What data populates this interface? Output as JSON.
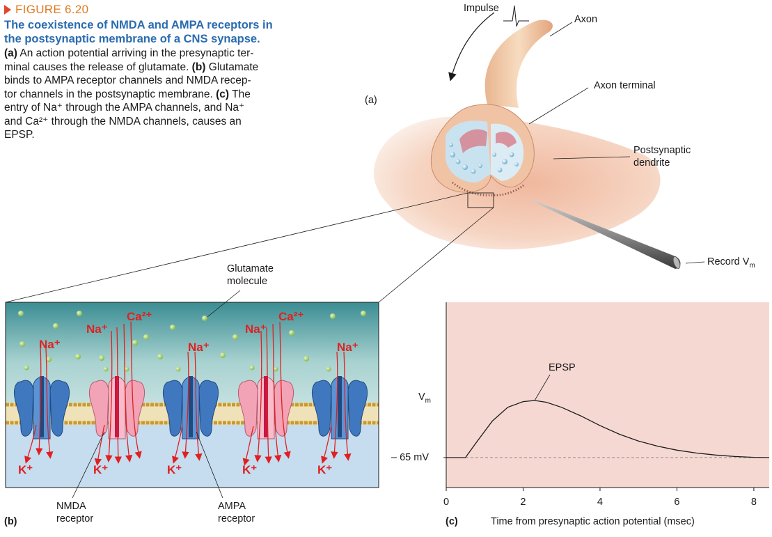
{
  "caption": {
    "figure_number": "FIGURE 6.20",
    "title_line1": "The coexistence of NMDA and AMPA receptors in",
    "title_line2": "the postsynaptic membrane of a CNS synapse.",
    "body_line1_a": "(a)",
    "body_line1_b": " An action potential arriving in the presynaptic ter-",
    "body_line2": "minal causes the release of glutamate.",
    "body_line2_b": " (b)",
    "body_line2_c": " Glutamate",
    "body_line3": "binds to AMPA receptor channels and NMDA recep-",
    "body_line4_a": "tor channels in the postsynaptic membrane.",
    "body_line4_b": " (c)",
    "body_line4_c": " The",
    "body_line5": "entry of Na⁺ through the AMPA channels, and Na⁺",
    "body_line6": "and Ca²⁺ through the NMDA channels, causes an",
    "body_line7": "EPSP."
  },
  "panel_a": {
    "panel_label": "(a)",
    "impulse": "Impulse",
    "axon": "Axon",
    "axon_terminal": "Axon terminal",
    "postsynaptic_line1": "Postsynaptic",
    "postsynaptic_line2": "dendrite",
    "record": "Record V",
    "record_sub": "m"
  },
  "panel_b": {
    "panel_label": "(b)",
    "glutamate_line1": "Glutamate",
    "glutamate_line2": "molecule",
    "nmda_line1": "NMDA",
    "nmda_line2": "receptor",
    "ampa_line1": "AMPA",
    "ampa_line2": "receptor",
    "na": "Na⁺",
    "ca": "Ca²⁺",
    "k": "K⁺"
  },
  "panel_c": {
    "panel_label": "(c)",
    "ylabel": "V",
    "ylabel_sub": "m",
    "baseline_label": "– 65 mV",
    "epsp": "EPSP",
    "xlabel": "Time from presynaptic action potential (msec)"
  },
  "chart_data": {
    "type": "line",
    "xlabel": "Time from presynaptic action potential (msec)",
    "ylabel": "Vm",
    "x_ticks": [
      "0",
      "2",
      "4",
      "6",
      "8"
    ],
    "xlim": [
      0,
      8.4
    ],
    "baseline_label": "– 65 mV",
    "annotation": "EPSP",
    "series": [
      {
        "x": [
          0,
          0.5,
          0.8,
          1.2,
          1.6,
          2.0,
          2.3,
          2.6,
          3.0,
          3.5,
          4.0,
          4.5,
          5.0,
          5.5,
          6.0,
          6.5,
          7.0,
          7.5,
          8.0,
          8.4
        ],
        "y": [
          0,
          0,
          0.28,
          0.64,
          0.88,
          0.98,
          1.0,
          0.97,
          0.88,
          0.73,
          0.56,
          0.41,
          0.29,
          0.2,
          0.13,
          0.08,
          0.045,
          0.02,
          0.005,
          0
        ]
      }
    ],
    "colors": {
      "background": "#f6d8d3",
      "line": "#1a1a1a",
      "baseline": "#888888"
    }
  }
}
